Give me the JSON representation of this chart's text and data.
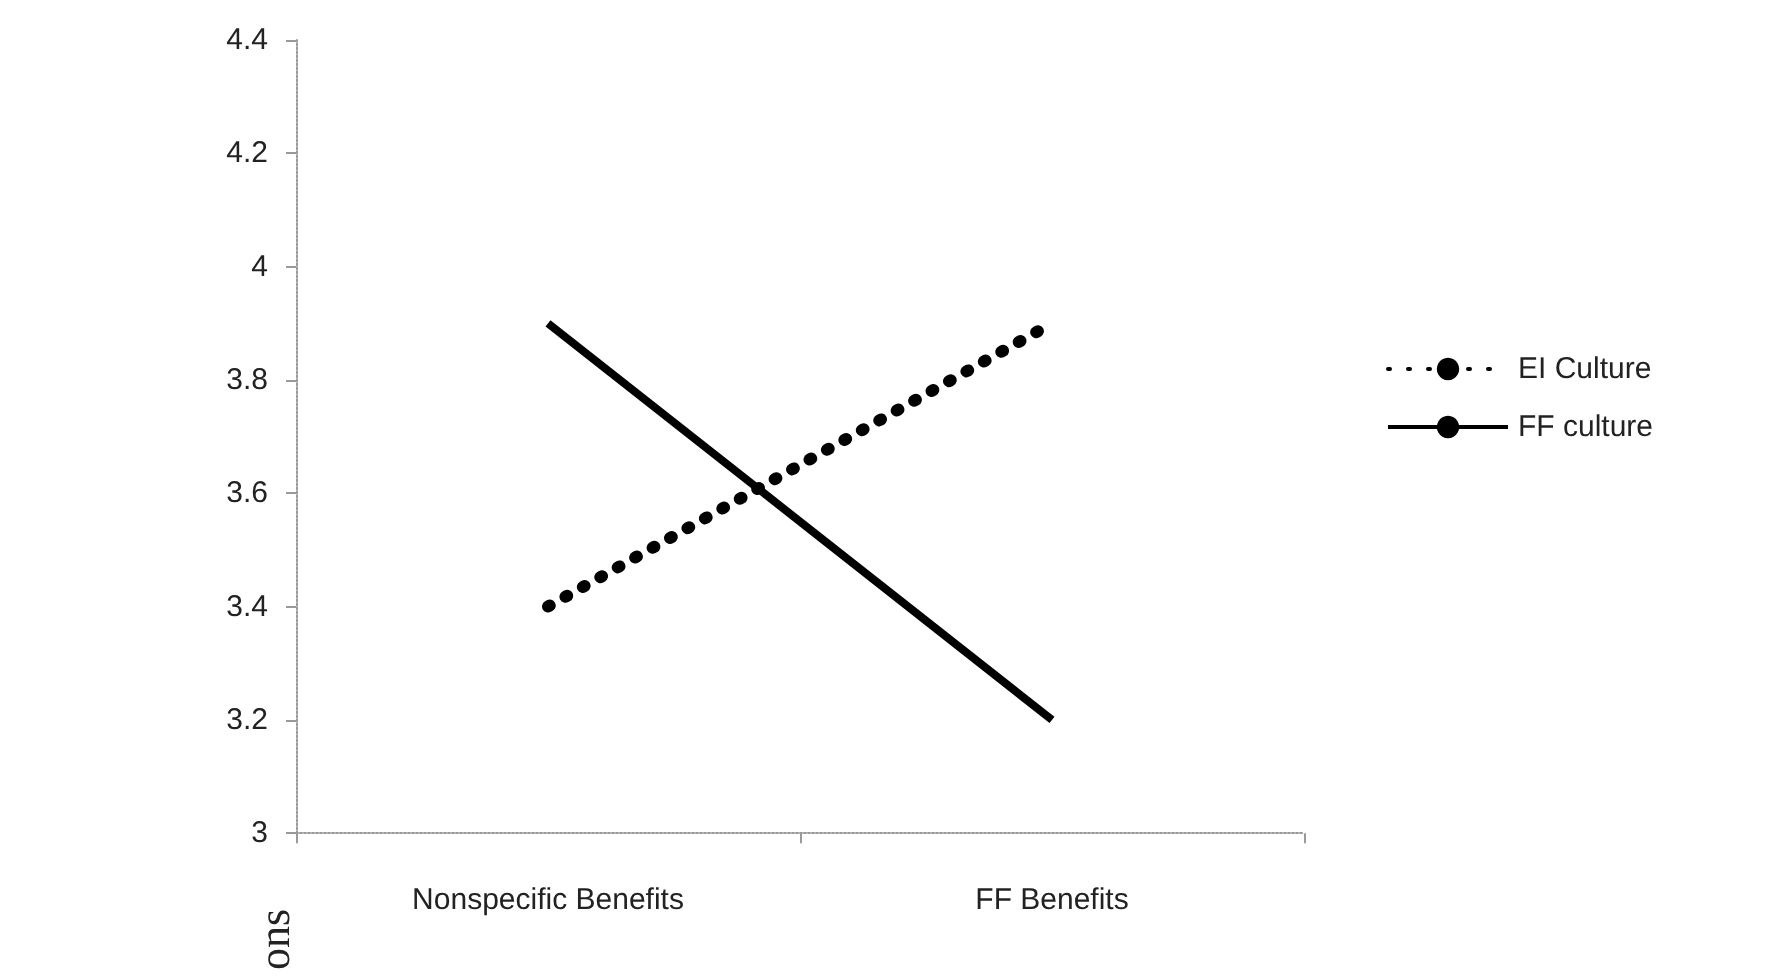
{
  "chart_data": {
    "type": "line",
    "ylabel": "ons",
    "categories": [
      "Nonspecific Benefits",
      "FF Benefits"
    ],
    "series": [
      {
        "name": "EI Culture",
        "color": "#000000",
        "values": [
          3.4,
          3.9
        ],
        "line_style": "dotted"
      },
      {
        "name": "FF culture",
        "color": "#000000",
        "values": [
          3.9,
          3.2
        ],
        "line_style": "solid"
      }
    ],
    "ylim": [
      3,
      4.4
    ],
    "yticks": [
      3,
      3.2,
      3.4,
      3.6,
      3.8,
      4,
      4.2,
      4.4
    ],
    "grid": false,
    "legend": "right",
    "marker": "none"
  }
}
